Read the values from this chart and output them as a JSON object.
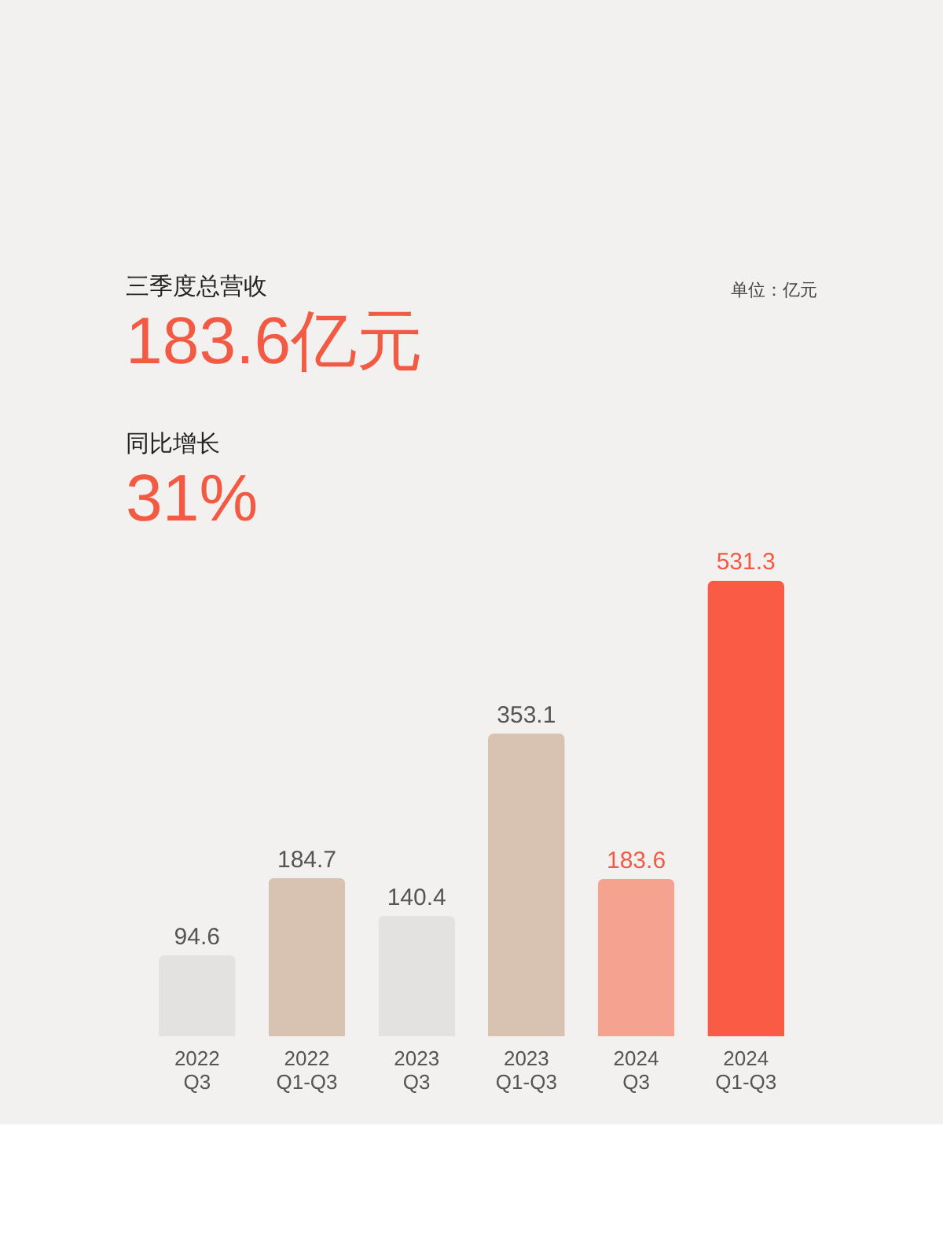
{
  "chart_data": {
    "type": "bar",
    "categories": [
      "2022\nQ3",
      "2022\nQ1-Q3",
      "2023\nQ3",
      "2023\nQ1-Q3",
      "2024\nQ3",
      "2024\nQ1-Q3"
    ],
    "values": [
      94.6,
      184.7,
      140.4,
      353.1,
      183.6,
      531.3
    ],
    "colors": [
      "#e4e2e0",
      "#d8c2b2",
      "#e4e2e0",
      "#d8c2b2",
      "#f6a291",
      "#fa5b45"
    ],
    "data_labels": true,
    "annotations": [
      "三季度总营收",
      "183.6亿元",
      "同比增长",
      "31%",
      "单位：亿元"
    ]
  }
}
